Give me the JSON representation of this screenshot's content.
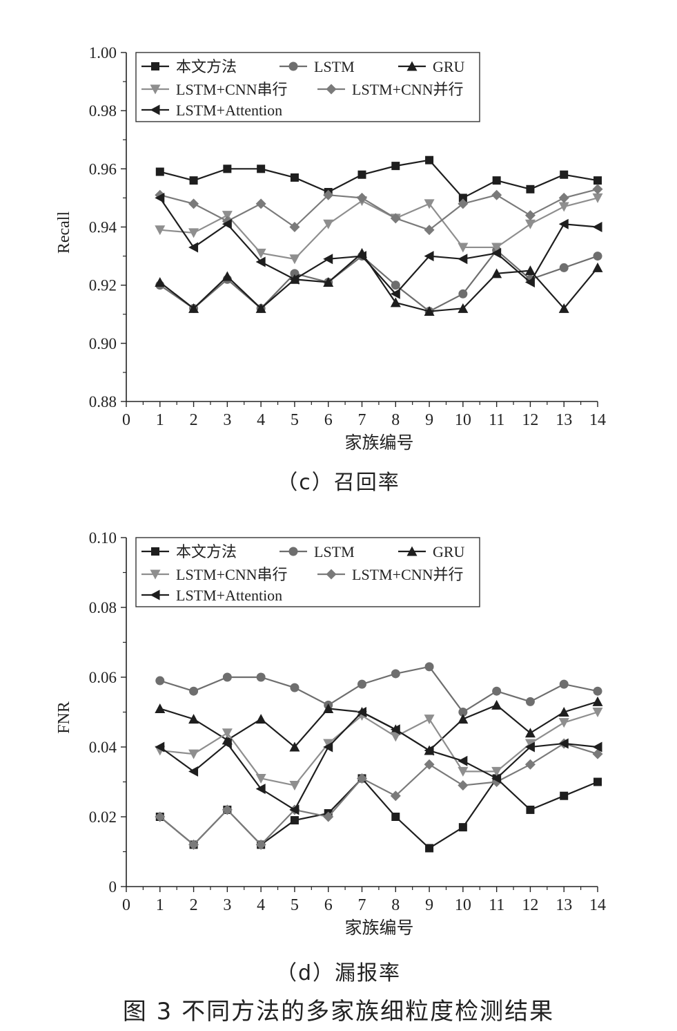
{
  "figure_title": "图 3   不同方法的多家族细粒度检测结果",
  "colors": {
    "dark": "#1e1e1e",
    "gray": "#6e6e6e",
    "light": "#8e8e8e",
    "mid": "#7a7a7a"
  },
  "chart_data": [
    {
      "type": "line",
      "caption": "（c）召回率",
      "xlabel": "家族编号",
      "ylabel": "Recall",
      "xlim": [
        0,
        14
      ],
      "ylim": [
        0.88,
        1.0
      ],
      "x_ticks": [
        "0",
        "1",
        "2",
        "3",
        "4",
        "5",
        "6",
        "7",
        "8",
        "9",
        "10",
        "11",
        "12",
        "13",
        "14"
      ],
      "y_ticks": [
        "0.88",
        "0.90",
        "0.92",
        "0.94",
        "0.96",
        "0.98",
        "1.00"
      ],
      "legend_position": "top",
      "x": [
        1,
        2,
        3,
        4,
        5,
        6,
        7,
        8,
        9,
        10,
        11,
        12,
        13,
        14
      ],
      "series": [
        {
          "name": "本文方法",
          "marker": "square",
          "color": "#1e1e1e",
          "values": [
            0.959,
            0.956,
            0.96,
            0.96,
            0.957,
            0.952,
            0.958,
            0.961,
            0.963,
            0.95,
            0.956,
            0.953,
            0.958,
            0.956
          ]
        },
        {
          "name": "LSTM",
          "marker": "circle",
          "color": "#6e6e6e",
          "values": [
            0.92,
            0.912,
            0.922,
            0.912,
            0.924,
            0.921,
            0.93,
            0.92,
            0.911,
            0.917,
            0.932,
            0.922,
            0.926,
            0.93
          ]
        },
        {
          "name": "GRU",
          "marker": "triangle-up",
          "color": "#1e1e1e",
          "values": [
            0.921,
            0.912,
            0.923,
            0.912,
            0.922,
            0.921,
            0.931,
            0.914,
            0.911,
            0.912,
            0.924,
            0.925,
            0.912,
            0.926
          ]
        },
        {
          "name": "LSTM+CNN串行",
          "marker": "triangle-down",
          "color": "#8e8e8e",
          "values": [
            0.939,
            0.938,
            0.944,
            0.931,
            0.929,
            0.941,
            0.949,
            0.943,
            0.948,
            0.933,
            0.933,
            0.941,
            0.947,
            0.95
          ]
        },
        {
          "name": "LSTM+CNN并行",
          "marker": "diamond",
          "color": "#7a7a7a",
          "values": [
            0.951,
            0.948,
            0.942,
            0.948,
            0.94,
            0.951,
            0.95,
            0.943,
            0.939,
            0.948,
            0.951,
            0.944,
            0.95,
            0.953
          ]
        },
        {
          "name": "LSTM+Attention",
          "marker": "triangle-left",
          "color": "#1e1e1e",
          "values": [
            0.95,
            0.933,
            0.941,
            0.928,
            0.922,
            0.929,
            0.93,
            0.917,
            0.93,
            0.929,
            0.931,
            0.921,
            0.941,
            0.94
          ]
        }
      ]
    },
    {
      "type": "line",
      "caption": "（d）漏报率",
      "xlabel": "家族编号",
      "ylabel": "FNR",
      "xlim": [
        0,
        14
      ],
      "ylim": [
        0,
        0.1
      ],
      "x_ticks": [
        "0",
        "1",
        "2",
        "3",
        "4",
        "5",
        "6",
        "7",
        "8",
        "9",
        "10",
        "11",
        "12",
        "13",
        "14"
      ],
      "y_ticks": [
        "0",
        "0.02",
        "0.04",
        "0.06",
        "0.08",
        "0.10"
      ],
      "legend_position": "top",
      "x": [
        1,
        2,
        3,
        4,
        5,
        6,
        7,
        8,
        9,
        10,
        11,
        12,
        13,
        14
      ],
      "series": [
        {
          "name": "本文方法",
          "marker": "square",
          "color": "#1e1e1e",
          "values": [
            0.02,
            0.012,
            0.022,
            0.012,
            0.019,
            0.021,
            0.031,
            0.02,
            0.011,
            0.017,
            0.031,
            0.022,
            0.026,
            0.03
          ]
        },
        {
          "name": "LSTM",
          "marker": "circle",
          "color": "#6e6e6e",
          "values": [
            0.059,
            0.056,
            0.06,
            0.06,
            0.057,
            0.052,
            0.058,
            0.061,
            0.063,
            0.05,
            0.056,
            0.053,
            0.058,
            0.056
          ]
        },
        {
          "name": "GRU",
          "marker": "triangle-up",
          "color": "#1e1e1e",
          "values": [
            0.051,
            0.048,
            0.042,
            0.048,
            0.04,
            0.051,
            0.05,
            0.045,
            0.039,
            0.048,
            0.052,
            0.044,
            0.05,
            0.053
          ]
        },
        {
          "name": "LSTM+CNN串行",
          "marker": "triangle-down",
          "color": "#8e8e8e",
          "values": [
            0.039,
            0.038,
            0.044,
            0.031,
            0.029,
            0.041,
            0.049,
            0.043,
            0.048,
            0.033,
            0.033,
            0.041,
            0.047,
            0.05
          ]
        },
        {
          "name": "LSTM+CNN并行",
          "marker": "diamond",
          "color": "#7a7a7a",
          "values": [
            0.02,
            0.012,
            0.022,
            0.012,
            0.022,
            0.02,
            0.031,
            0.026,
            0.035,
            0.029,
            0.03,
            0.035,
            0.041,
            0.038
          ]
        },
        {
          "name": "LSTM+Attention",
          "marker": "triangle-left",
          "color": "#1e1e1e",
          "values": [
            0.04,
            0.033,
            0.041,
            0.028,
            0.022,
            0.04,
            0.05,
            0.045,
            0.039,
            0.036,
            0.031,
            0.04,
            0.041,
            0.04
          ]
        }
      ]
    }
  ]
}
